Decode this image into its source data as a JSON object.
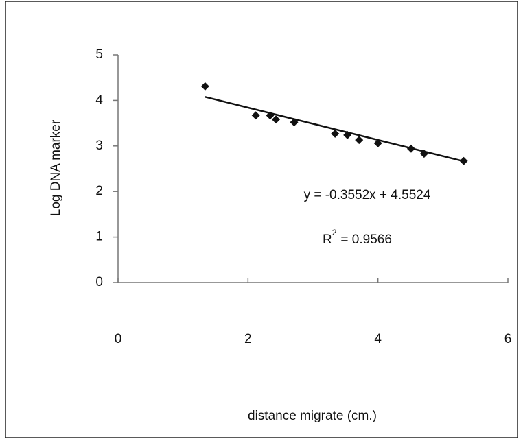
{
  "chart_data": {
    "type": "scatter",
    "x_label": "distance migrate (cm.)",
    "y_label": "Log DNA marker",
    "x": [
      1.34,
      2.12,
      2.34,
      2.43,
      2.71,
      3.34,
      3.53,
      3.71,
      4.0,
      4.51,
      4.71,
      5.32
    ],
    "values": [
      4.31,
      3.67,
      3.67,
      3.58,
      3.52,
      3.27,
      3.24,
      3.13,
      3.06,
      2.94,
      2.83,
      2.67
    ],
    "color": "#111111",
    "xlim": [
      0,
      6
    ],
    "xticks": [
      0,
      2,
      4,
      6
    ],
    "ylim": [
      0,
      5
    ],
    "yticks": [
      0,
      1,
      2,
      3,
      4,
      5
    ],
    "trendline": {
      "slope": -0.3552,
      "intercept": 4.5524,
      "label": "y = -0.3552x + 4.5524"
    },
    "r_squared": {
      "symbol": "R",
      "power": "2",
      "text": "= 0.9566"
    }
  }
}
